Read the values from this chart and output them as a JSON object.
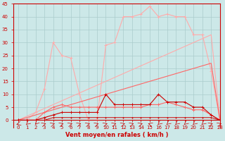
{
  "xlabel": "Vent moyen/en rafales ( km/h )",
  "x": [
    0,
    1,
    2,
    3,
    4,
    5,
    6,
    7,
    8,
    9,
    10,
    11,
    12,
    13,
    14,
    15,
    16,
    17,
    18,
    19,
    20,
    21,
    22,
    23
  ],
  "ylim": [
    -3,
    45
  ],
  "xlim": [
    -0.5,
    23
  ],
  "yticks": [
    0,
    5,
    10,
    15,
    20,
    25,
    30,
    35,
    40,
    45
  ],
  "ytick_labels": [
    "0",
    "5",
    "10",
    "15",
    "20",
    "25",
    "30",
    "35",
    "40",
    "45"
  ],
  "xtick_labels": [
    "0",
    "1",
    "2",
    "3",
    "4",
    "5",
    "6",
    "7",
    "8",
    "9",
    "10",
    "11",
    "12",
    "13",
    "14",
    "15",
    "16",
    "17",
    "18",
    "19",
    "20",
    "21",
    "22",
    "23"
  ],
  "bg_color": "#cce8e8",
  "grid_color": "#aacccc",
  "color_light_pink": "#ffaaaa",
  "color_mid_pink": "#ff6666",
  "color_dark_red": "#cc0000",
  "line_rafales": [
    0,
    0,
    3,
    12,
    30,
    25,
    24,
    10,
    0,
    0,
    29,
    30,
    40,
    40,
    41,
    44,
    40,
    41,
    40,
    40,
    33,
    33,
    19,
    0
  ],
  "line_moyen": [
    0,
    0,
    0,
    3,
    5,
    6,
    5,
    5,
    5,
    5,
    5,
    5,
    5,
    5,
    5,
    6,
    6,
    7,
    6,
    5,
    4,
    4,
    2,
    0
  ],
  "line_straight_top": [
    0,
    1.5,
    3,
    4.5,
    6,
    7.5,
    9,
    10.5,
    12,
    13.5,
    15,
    16.5,
    18,
    19.5,
    21,
    22.5,
    24,
    25.5,
    27,
    28.5,
    30,
    31.5,
    33,
    0
  ],
  "line_straight_mid": [
    0,
    1.0,
    2.0,
    3.0,
    4.0,
    5.0,
    6.0,
    7.0,
    8.0,
    9.0,
    10.0,
    11.0,
    12.0,
    13.0,
    14.0,
    15.0,
    16.0,
    17.0,
    18.0,
    19.0,
    20.0,
    21.0,
    22.0,
    0
  ],
  "line_small_dark": [
    0,
    0,
    0,
    1,
    2,
    3,
    3,
    3,
    3,
    3,
    10,
    6,
    6,
    6,
    6,
    6,
    10,
    7,
    7,
    7,
    5,
    5,
    2,
    0
  ],
  "line_near_zero": [
    0,
    0,
    0,
    0,
    1,
    1,
    1,
    1,
    1,
    1,
    1,
    1,
    1,
    1,
    1,
    1,
    1,
    1,
    1,
    1,
    1,
    1,
    1,
    0
  ],
  "line_zero": [
    0,
    0,
    0,
    0,
    0,
    0,
    0,
    0,
    0,
    0,
    0,
    0,
    0,
    0,
    0,
    0,
    0,
    0,
    0,
    0,
    0,
    0,
    0,
    0
  ],
  "xlabel_color": "#cc0000",
  "tick_color": "#cc0000",
  "spine_color": "#cc0000",
  "font_size_ticks": 5,
  "font_size_xlabel": 6
}
